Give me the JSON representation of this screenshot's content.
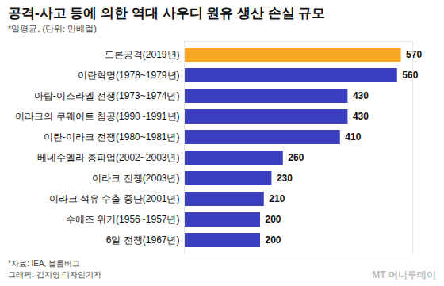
{
  "chart_data": {
    "type": "bar",
    "orientation": "horizontal",
    "title": "공격-사고 등에 의한 역대 사우디 원유 생산 손실 규모",
    "subtitle": "*일평균, (단위: 만배럴)",
    "source": "*자료: IEA, 블룸버그",
    "credit": "그래픽: 김지영 디자인기자",
    "logo": "MT 머니투데이",
    "categories": [
      "드론공격(2019년)",
      "이란혁명(1978~1979년)",
      "아랍-이스라엘 전쟁(1973~1974년)",
      "이라크의 쿠웨이트 침공(1990~1991년)",
      "이란-이라크 전쟁(1980~1981년)",
      "베네수엘라 총파업(2002~2003년)",
      "이라크 전쟁(2003년)",
      "이라크 석유 수출 중단(2001년)",
      "수에즈 위기(1956~1957년)",
      "6일 전쟁(1967년)"
    ],
    "values": [
      570,
      560,
      430,
      430,
      410,
      260,
      230,
      210,
      200,
      200
    ],
    "colors": [
      "#f5a623",
      "#3b3fbf",
      "#3b3fbf",
      "#3b3fbf",
      "#3b3fbf",
      "#3b3fbf",
      "#3b3fbf",
      "#3b3fbf",
      "#3b3fbf",
      "#3b3fbf"
    ],
    "xlim": [
      0,
      600
    ],
    "data_labels": true,
    "tick_labels": "y",
    "grid": false
  }
}
